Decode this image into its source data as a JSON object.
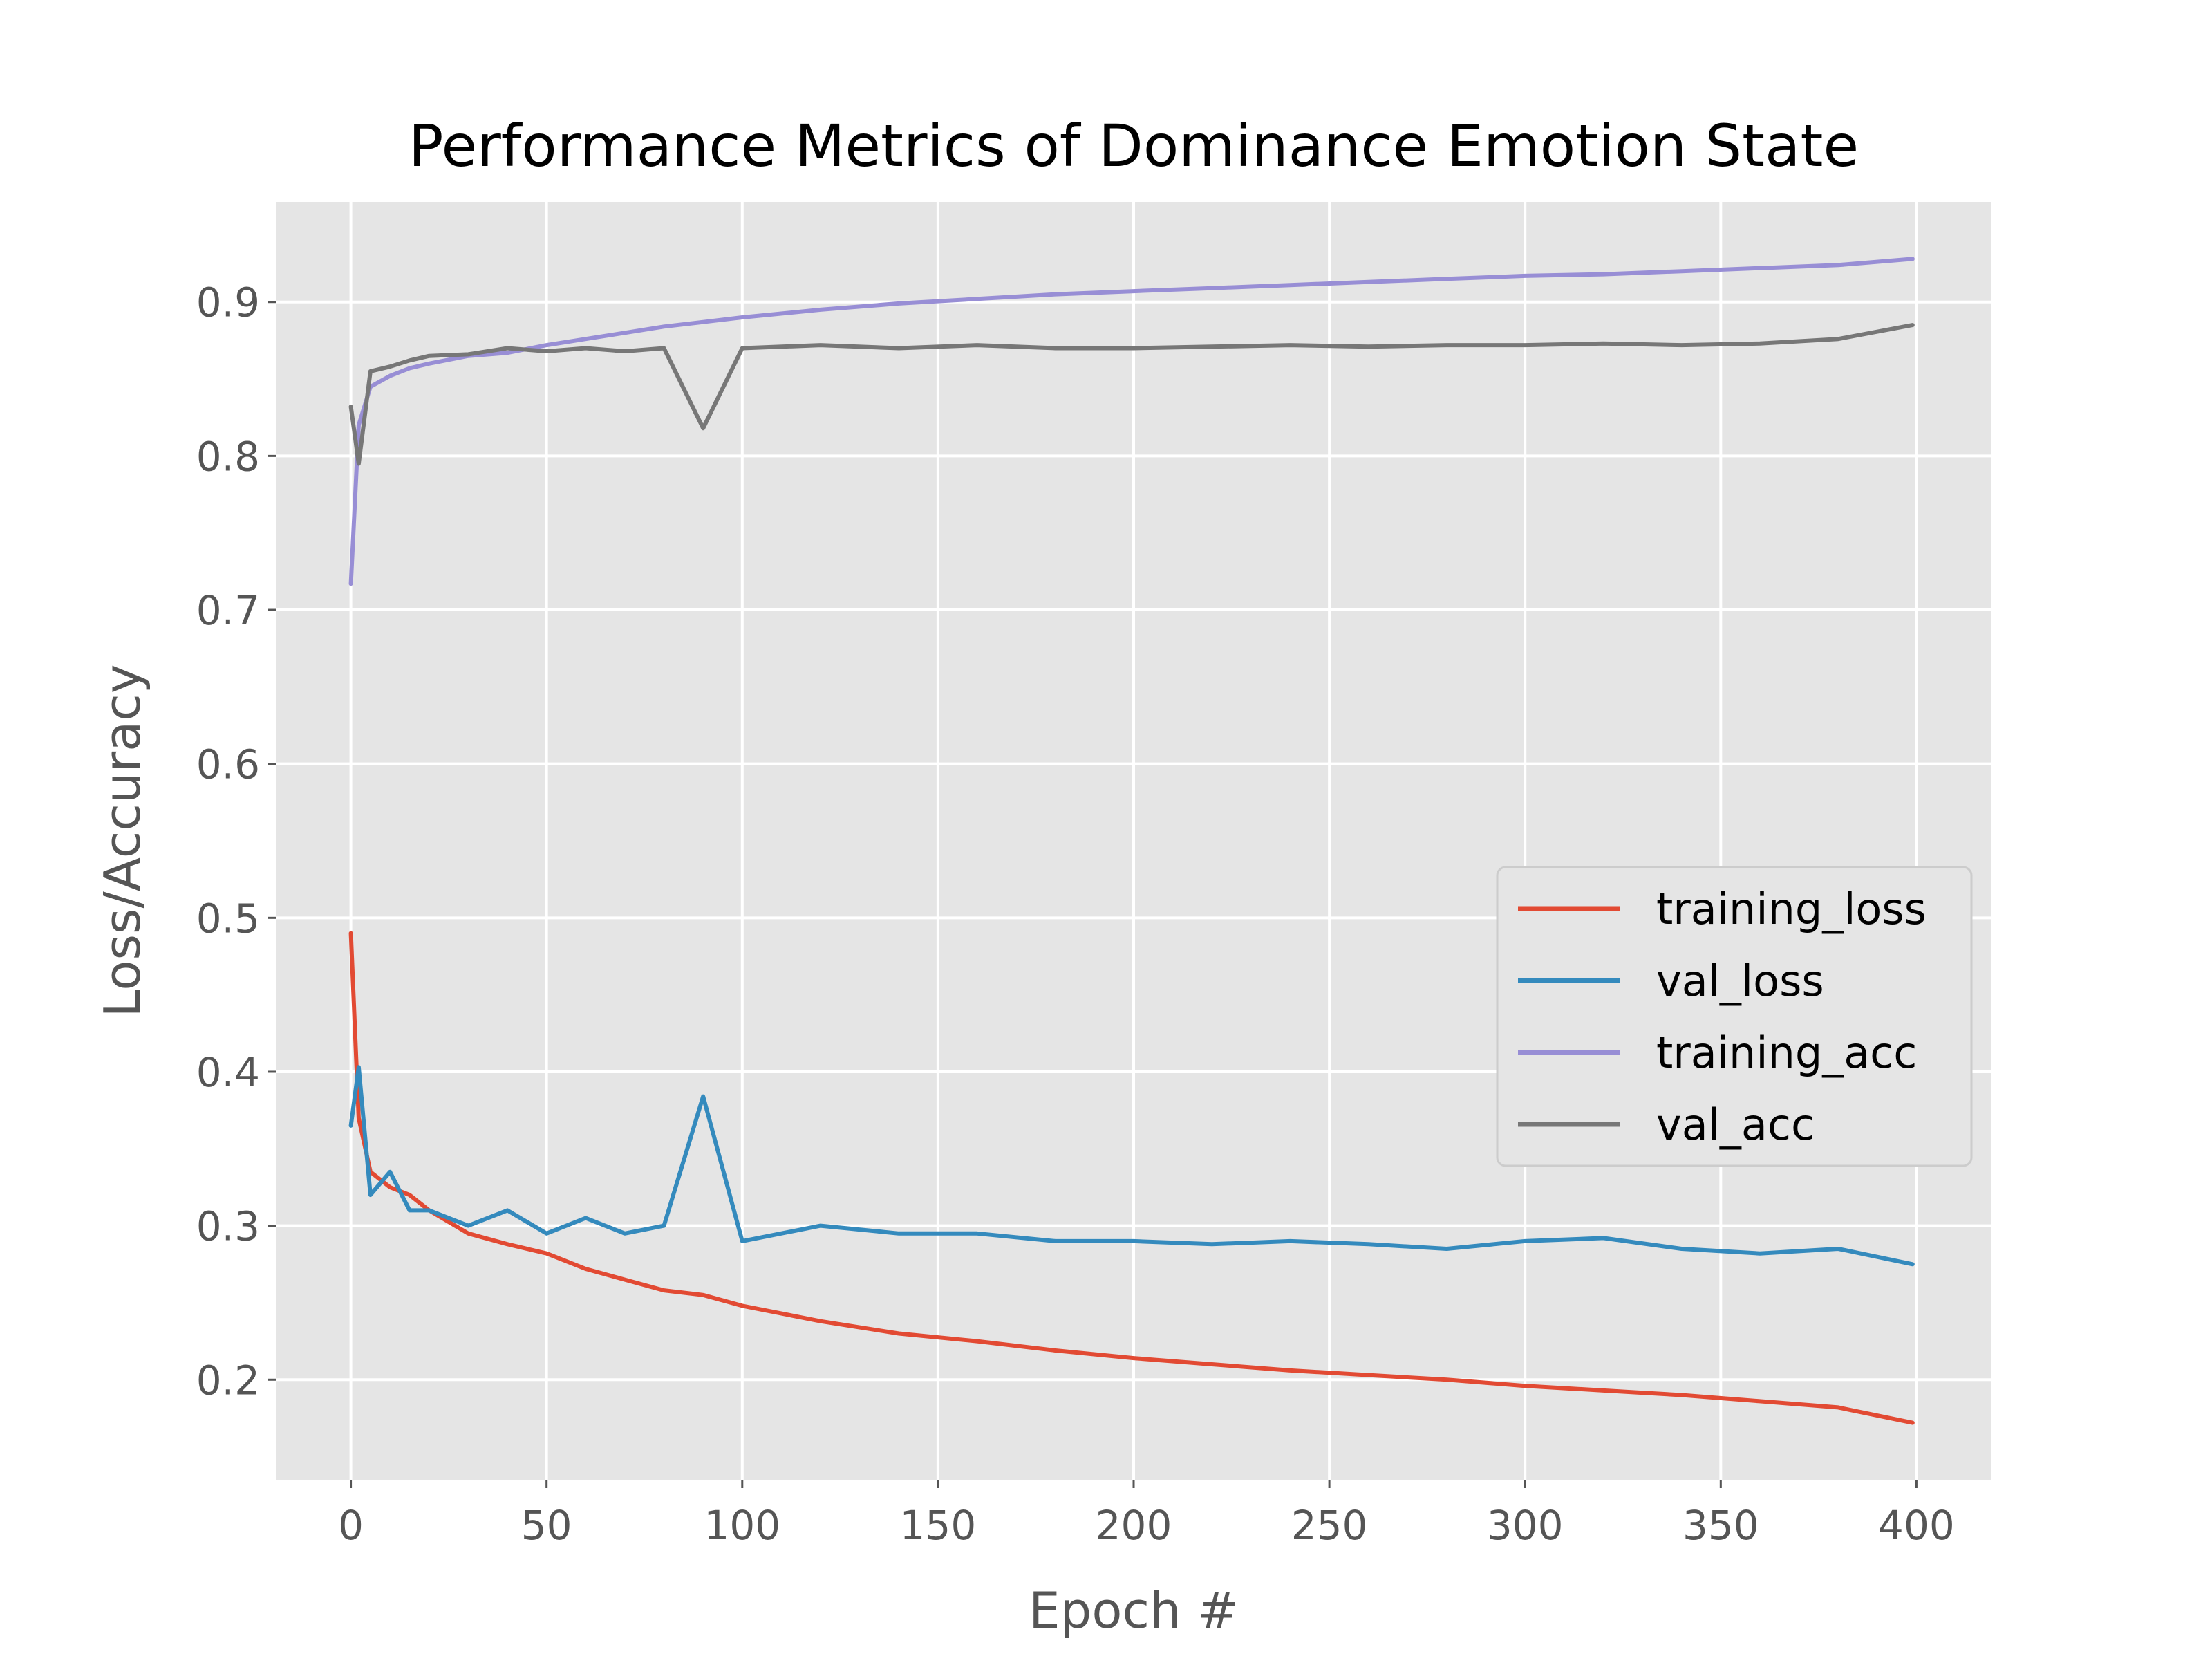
{
  "chart_data": {
    "type": "line",
    "title": "Performance Metrics of Dominance Emotion State",
    "xlabel": "Epoch #",
    "ylabel": "Loss/Accuracy",
    "xlim": [
      -19,
      419
    ],
    "ylim": [
      0.135,
      0.965
    ],
    "xticks": [
      0,
      50,
      100,
      150,
      200,
      250,
      300,
      350,
      400
    ],
    "yticks": [
      0.2,
      0.3,
      0.4,
      0.5,
      0.6,
      0.7,
      0.8,
      0.9
    ],
    "xtick_labels": [
      "0",
      "50",
      "100",
      "150",
      "200",
      "250",
      "300",
      "350",
      "400"
    ],
    "ytick_labels": [
      "0.2",
      "0.3",
      "0.4",
      "0.5",
      "0.6",
      "0.7",
      "0.8",
      "0.9"
    ],
    "grid": true,
    "style": "ggplot",
    "legend_position": "center-right",
    "x": [
      0,
      2,
      5,
      10,
      15,
      20,
      30,
      40,
      50,
      60,
      70,
      80,
      90,
      100,
      120,
      140,
      160,
      180,
      200,
      220,
      240,
      260,
      280,
      300,
      320,
      340,
      360,
      380,
      399
    ],
    "series": [
      {
        "name": "training_loss",
        "color": "#e24a33",
        "values": [
          0.49,
          0.37,
          0.335,
          0.325,
          0.32,
          0.31,
          0.295,
          0.288,
          0.282,
          0.272,
          0.265,
          0.258,
          0.255,
          0.248,
          0.238,
          0.23,
          0.225,
          0.219,
          0.214,
          0.21,
          0.206,
          0.203,
          0.2,
          0.196,
          0.193,
          0.19,
          0.186,
          0.182,
          0.172
        ]
      },
      {
        "name": "val_loss",
        "color": "#348abd",
        "values": [
          0.365,
          0.403,
          0.32,
          0.335,
          0.31,
          0.31,
          0.3,
          0.31,
          0.295,
          0.305,
          0.295,
          0.3,
          0.384,
          0.29,
          0.3,
          0.295,
          0.295,
          0.29,
          0.29,
          0.288,
          0.29,
          0.288,
          0.285,
          0.29,
          0.292,
          0.285,
          0.282,
          0.285,
          0.275
        ]
      },
      {
        "name": "training_acc",
        "color": "#988ed5",
        "values": [
          0.717,
          0.82,
          0.845,
          0.852,
          0.857,
          0.86,
          0.865,
          0.867,
          0.872,
          0.876,
          0.88,
          0.884,
          0.887,
          0.89,
          0.895,
          0.899,
          0.902,
          0.905,
          0.907,
          0.909,
          0.911,
          0.913,
          0.915,
          0.917,
          0.918,
          0.92,
          0.922,
          0.924,
          0.928
        ]
      },
      {
        "name": "val_acc",
        "color": "#777777",
        "values": [
          0.832,
          0.795,
          0.855,
          0.858,
          0.862,
          0.865,
          0.866,
          0.87,
          0.868,
          0.87,
          0.868,
          0.87,
          0.818,
          0.87,
          0.872,
          0.87,
          0.872,
          0.87,
          0.87,
          0.871,
          0.872,
          0.871,
          0.872,
          0.872,
          0.873,
          0.872,
          0.873,
          0.876,
          0.885
        ]
      }
    ]
  },
  "colors": {
    "axes_background": "#e5e5e5",
    "grid": "#ffffff",
    "legend_background": "#e5e5e5",
    "legend_border": "#cccccc"
  }
}
